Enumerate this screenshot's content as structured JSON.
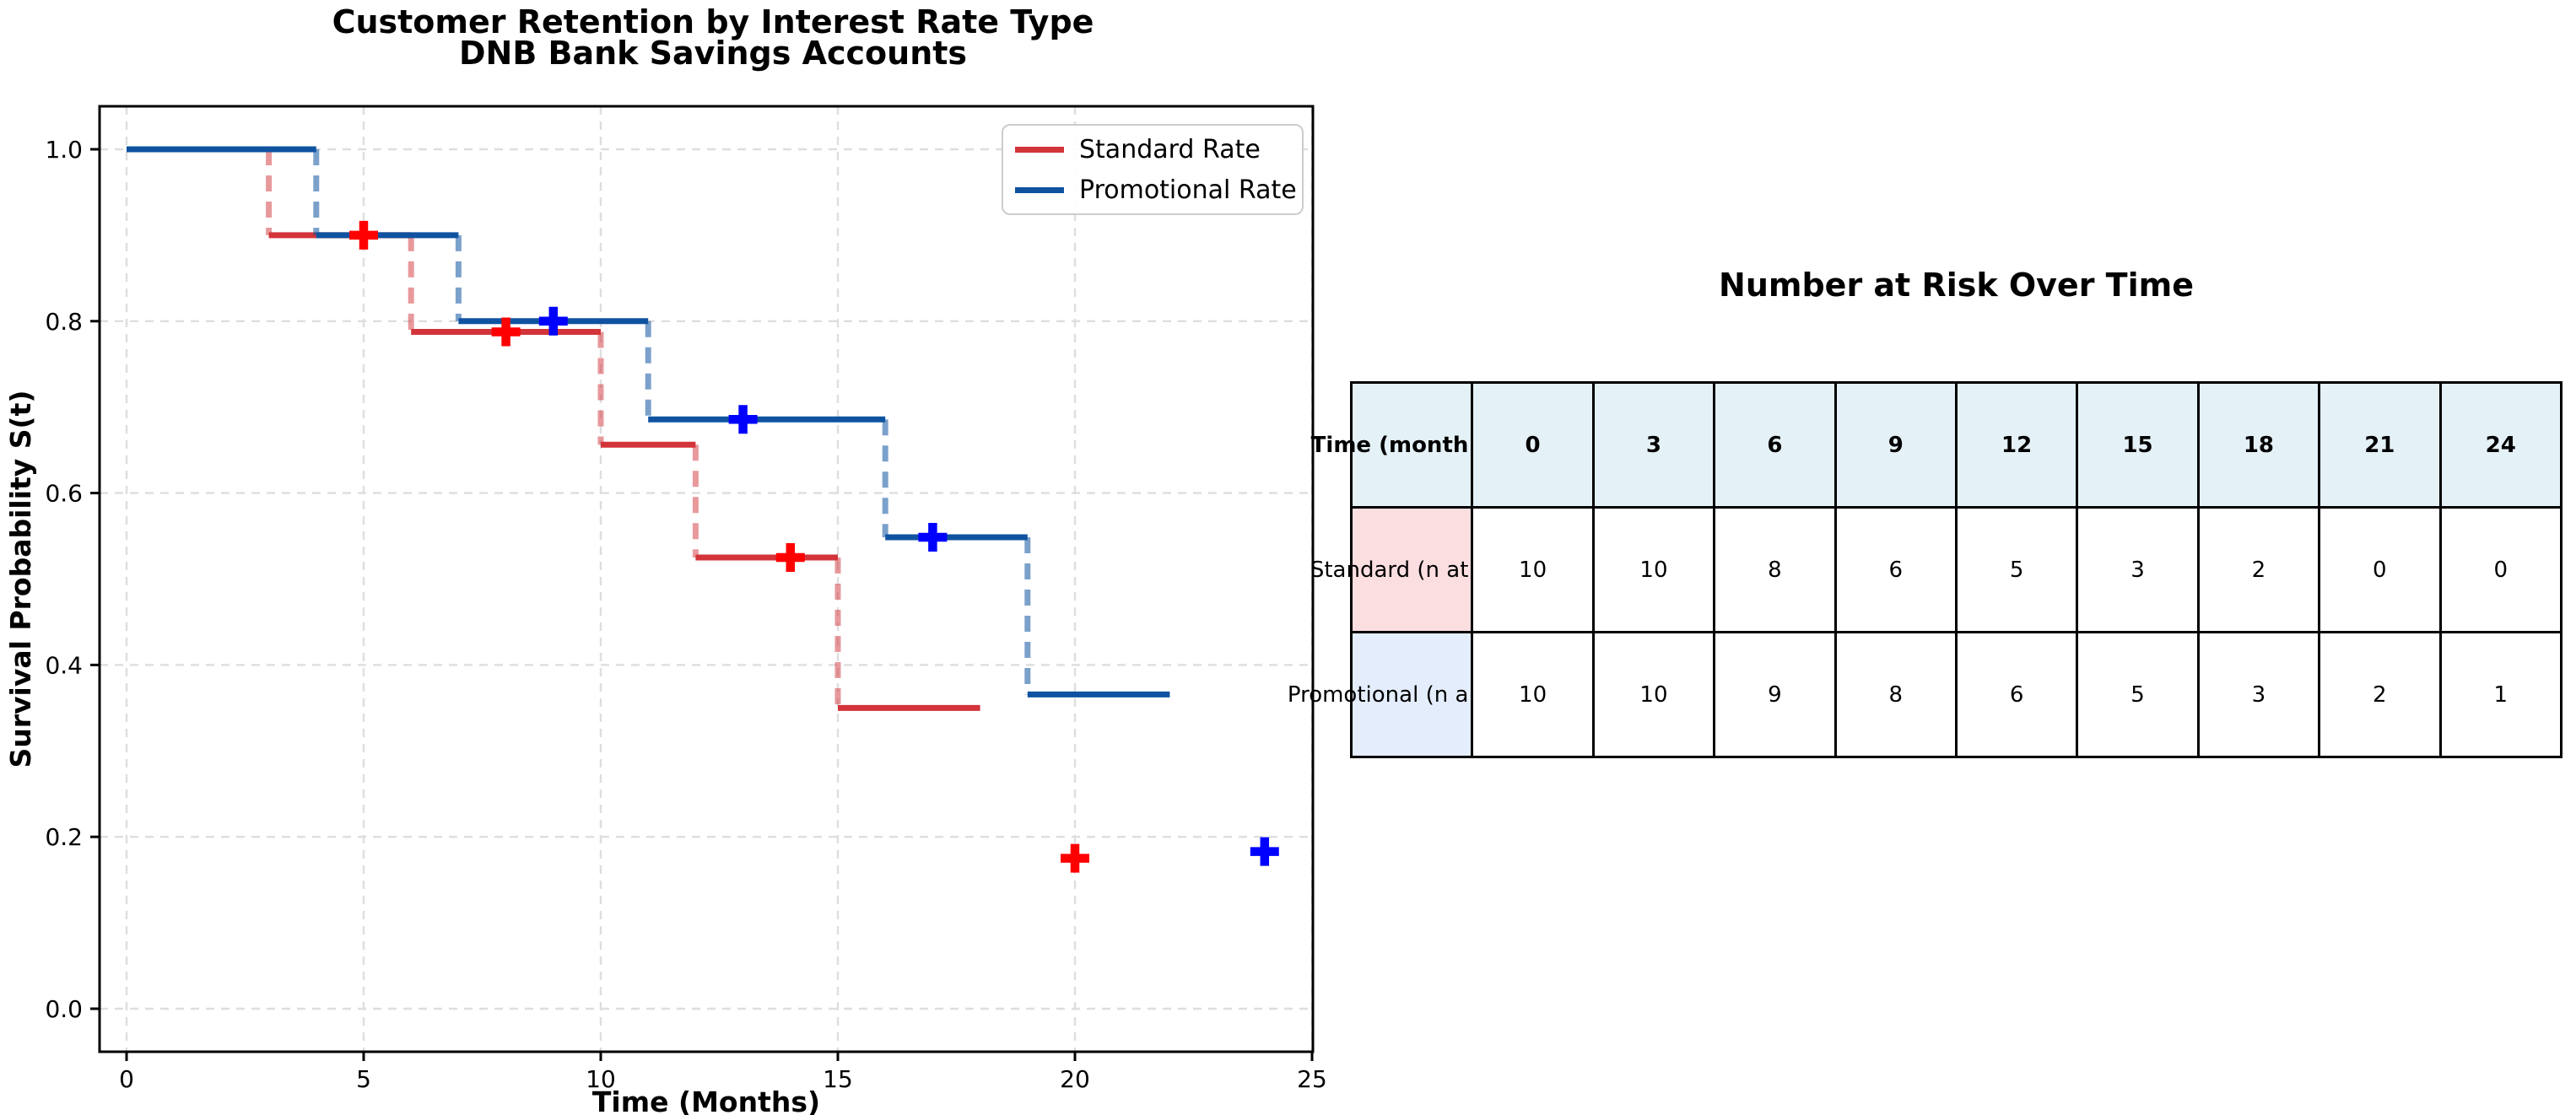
{
  "plot": {
    "title_line1": "Customer Retention by Interest Rate Type",
    "title_line2": "DNB Bank Savings Accounts",
    "xlabel": "Time (Months)",
    "ylabel": "Survival Probability S(t)"
  },
  "legend": {
    "items": [
      {
        "label": "Standard Rate",
        "color": "#d2343a"
      },
      {
        "label": "Promotional Rate",
        "color": "#0f53a0"
      }
    ]
  },
  "chart_data": {
    "type": "line",
    "subtype": "kaplan-meier-step",
    "title": "Customer Retention by Interest Rate Type — DNB Bank Savings Accounts",
    "xlabel": "Time (Months)",
    "ylabel": "Survival Probability S(t)",
    "xlim": [
      -0.57,
      25.01
    ],
    "ylim": [
      -0.05,
      1.056
    ],
    "grid": true,
    "grid_color": "#dedede",
    "xticks": [
      {
        "v": 0,
        "label": "0"
      },
      {
        "v": 5,
        "label": "5"
      },
      {
        "v": 10,
        "label": "10"
      },
      {
        "v": 15,
        "label": "15"
      },
      {
        "v": 20,
        "label": "20"
      },
      {
        "v": 25,
        "label": "25"
      }
    ],
    "yticks": [
      {
        "v": 0.0,
        "label": "0.0"
      },
      {
        "v": 0.2,
        "label": "0.2"
      },
      {
        "v": 0.4,
        "label": "0.4"
      },
      {
        "v": 0.6,
        "label": "0.6"
      },
      {
        "v": 0.8,
        "label": "0.8"
      },
      {
        "v": 1.0,
        "label": "1.0"
      }
    ],
    "series": [
      {
        "name": "Standard Rate",
        "line_color": "#d2343a",
        "censor_color": "#ff0000",
        "dash_opacity": 0.5,
        "steps": [
          [
            0,
            1.0
          ],
          [
            3,
            0.9
          ],
          [
            6,
            0.7875
          ],
          [
            10,
            0.65625
          ],
          [
            12,
            0.525
          ],
          [
            15,
            0.35
          ]
        ],
        "end_time": 18,
        "censors": [
          [
            5,
            0.9
          ],
          [
            8,
            0.7875
          ],
          [
            14,
            0.525
          ],
          [
            20,
            0.175
          ]
        ]
      },
      {
        "name": "Promotional Rate",
        "line_color": "#0f53a0",
        "censor_color": "#0000ff",
        "dash_opacity": 0.55,
        "steps": [
          [
            0,
            1.0
          ],
          [
            4,
            0.9
          ],
          [
            7,
            0.8
          ],
          [
            11,
            0.6857
          ],
          [
            16,
            0.5486
          ],
          [
            19,
            0.3657
          ]
        ],
        "end_time": 22,
        "censors": [
          [
            9,
            0.8
          ],
          [
            13,
            0.6857
          ],
          [
            17,
            0.5486
          ],
          [
            24,
            0.1829
          ]
        ]
      }
    ]
  },
  "table": {
    "title": "Number at Risk Over Time",
    "header_bg": "#e4f1f6",
    "header_label": "Time (month",
    "columns": [
      "0",
      "3",
      "6",
      "9",
      "12",
      "15",
      "18",
      "21",
      "24"
    ],
    "rows": [
      {
        "label": "Standard (n at",
        "label_bg": "#fbdee0",
        "values": [
          "10",
          "10",
          "8",
          "6",
          "5",
          "3",
          "2",
          "0",
          "0"
        ]
      },
      {
        "label": "Promotional (n a",
        "label_bg": "#e3edfb",
        "values": [
          "10",
          "10",
          "9",
          "8",
          "6",
          "5",
          "3",
          "2",
          "1"
        ]
      }
    ]
  }
}
